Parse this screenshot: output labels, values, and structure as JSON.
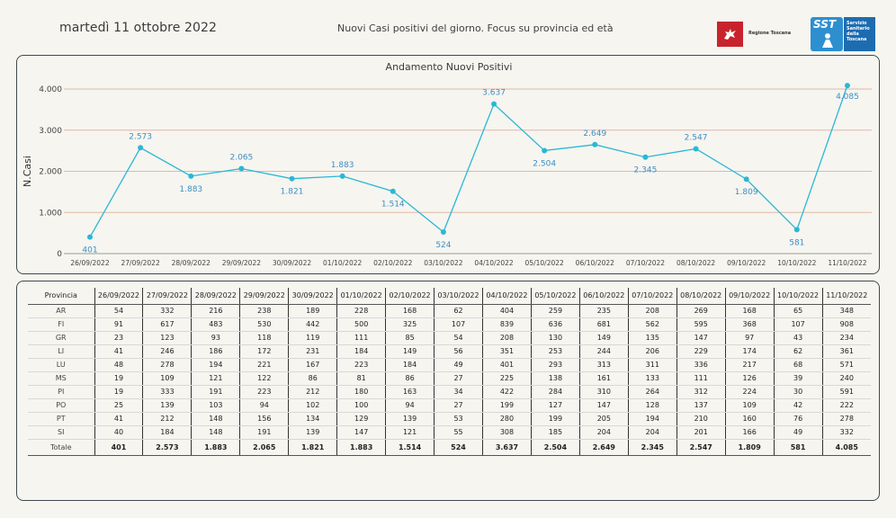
{
  "header": {
    "date": "martedì 11 ottobre 2022",
    "subtitle": "Nuovi Casi positivi del giorno. Focus su provincia ed età",
    "logo_regione": "Regione Toscana",
    "logo_sst_letters": "SST",
    "logo_sst_lines": [
      "Servizio",
      "Sanitario",
      "della",
      "Toscana"
    ]
  },
  "chart_data": {
    "type": "line",
    "title": "Andamento Nuovi Positivi",
    "xlabel": "",
    "ylabel": "N.Casi",
    "categories": [
      "26/09/2022",
      "27/09/2022",
      "28/09/2022",
      "29/09/2022",
      "30/09/2022",
      "01/10/2022",
      "02/10/2022",
      "03/10/2022",
      "04/10/2022",
      "05/10/2022",
      "06/10/2022",
      "07/10/2022",
      "08/10/2022",
      "09/10/2022",
      "10/10/2022",
      "11/10/2022"
    ],
    "values": [
      401,
      2573,
      1883,
      2065,
      1821,
      1883,
      1514,
      524,
      3637,
      2504,
      2649,
      2345,
      2547,
      1809,
      581,
      4085
    ],
    "value_labels": [
      "401",
      "2.573",
      "1.883",
      "2.065",
      "1.821",
      "1.883",
      "1.514",
      "524",
      "3.637",
      "2.504",
      "2.649",
      "2.345",
      "2.547",
      "1.809",
      "581",
      "4.085"
    ],
    "yticks": [
      0,
      1000,
      2000,
      3000,
      4000
    ],
    "ytick_labels": [
      "0",
      "1.000",
      "2.000",
      "3.000",
      "4.000"
    ],
    "ylim": [
      0,
      4000
    ],
    "grid": true,
    "line_color": "#2bb7d6",
    "grid_color": "#e2b8a4",
    "label_color": "#3d8fc4"
  },
  "table": {
    "headers": [
      "Provincia",
      "26/09/2022",
      "27/09/2022",
      "28/09/2022",
      "29/09/2022",
      "30/09/2022",
      "01/10/2022",
      "02/10/2022",
      "03/10/2022",
      "04/10/2022",
      "05/10/2022",
      "06/10/2022",
      "07/10/2022",
      "08/10/2022",
      "09/10/2022",
      "10/10/2022",
      "11/10/2022"
    ],
    "rows": [
      [
        "AR",
        "54",
        "332",
        "216",
        "238",
        "189",
        "228",
        "168",
        "62",
        "404",
        "259",
        "235",
        "208",
        "269",
        "168",
        "65",
        "348"
      ],
      [
        "FI",
        "91",
        "617",
        "483",
        "530",
        "442",
        "500",
        "325",
        "107",
        "839",
        "636",
        "681",
        "562",
        "595",
        "368",
        "107",
        "908"
      ],
      [
        "GR",
        "23",
        "123",
        "93",
        "118",
        "119",
        "111",
        "85",
        "54",
        "208",
        "130",
        "149",
        "135",
        "147",
        "97",
        "43",
        "234"
      ],
      [
        "LI",
        "41",
        "246",
        "186",
        "172",
        "231",
        "184",
        "149",
        "56",
        "351",
        "253",
        "244",
        "206",
        "229",
        "174",
        "62",
        "361"
      ],
      [
        "LU",
        "48",
        "278",
        "194",
        "221",
        "167",
        "223",
        "184",
        "49",
        "401",
        "293",
        "313",
        "311",
        "336",
        "217",
        "68",
        "571"
      ],
      [
        "MS",
        "19",
        "109",
        "121",
        "122",
        "86",
        "81",
        "86",
        "27",
        "225",
        "138",
        "161",
        "133",
        "111",
        "126",
        "39",
        "240"
      ],
      [
        "PI",
        "19",
        "333",
        "191",
        "223",
        "212",
        "180",
        "163",
        "34",
        "422",
        "284",
        "310",
        "264",
        "312",
        "224",
        "30",
        "591"
      ],
      [
        "PO",
        "25",
        "139",
        "103",
        "94",
        "102",
        "100",
        "94",
        "27",
        "199",
        "127",
        "147",
        "128",
        "137",
        "109",
        "42",
        "222"
      ],
      [
        "PT",
        "41",
        "212",
        "148",
        "156",
        "134",
        "129",
        "139",
        "53",
        "280",
        "199",
        "205",
        "194",
        "210",
        "160",
        "76",
        "278"
      ],
      [
        "SI",
        "40",
        "184",
        "148",
        "191",
        "139",
        "147",
        "121",
        "55",
        "308",
        "185",
        "204",
        "204",
        "201",
        "166",
        "49",
        "332"
      ]
    ],
    "total": [
      "Totale",
      "401",
      "2.573",
      "1.883",
      "2.065",
      "1.821",
      "1.883",
      "1.514",
      "524",
      "3.637",
      "2.504",
      "2.649",
      "2.345",
      "2.547",
      "1.809",
      "581",
      "4.085"
    ]
  }
}
